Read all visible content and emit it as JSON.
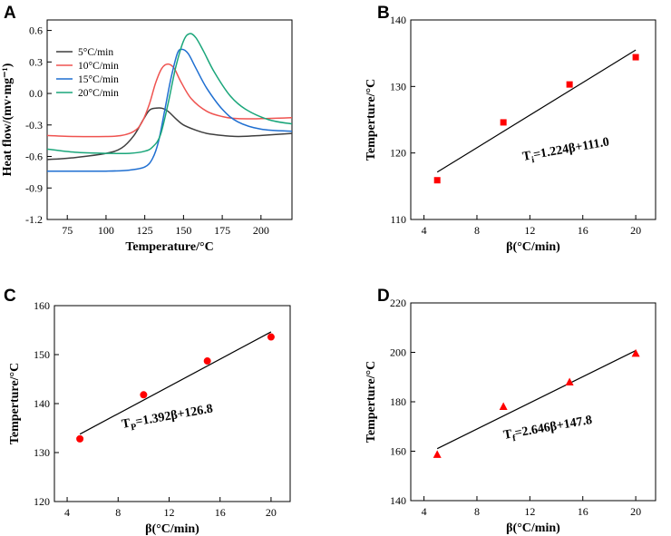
{
  "chart_data": [
    {
      "panel": "A",
      "type": "line",
      "xlabel": "Temperature/°C",
      "ylabel": "Heat flow/(mv·mg⁻¹)",
      "xlim": [
        62,
        220
      ],
      "ylim": [
        -1.2,
        0.7
      ],
      "xticks": [
        75,
        100,
        125,
        150,
        175,
        200
      ],
      "yticks": [
        -1.2,
        -0.9,
        -0.6,
        -0.3,
        0.0,
        0.3,
        0.6
      ],
      "ytick_labels": [
        "-1.2",
        "-0.9",
        "-0.6",
        "-0.3",
        "0.0",
        "0.3",
        "0.6"
      ],
      "series": [
        {
          "name": "5°C/min",
          "color": "#3f3f3f",
          "x": [
            62,
            80,
            100,
            110,
            118,
            124,
            128,
            132,
            136,
            140,
            145,
            150,
            158,
            165,
            175,
            185,
            200,
            220
          ],
          "y": [
            -0.63,
            -0.61,
            -0.57,
            -0.52,
            -0.4,
            -0.25,
            -0.16,
            -0.14,
            -0.14,
            -0.17,
            -0.24,
            -0.3,
            -0.35,
            -0.38,
            -0.4,
            -0.41,
            -0.4,
            -0.38
          ]
        },
        {
          "name": "10°C/min",
          "color": "#ef5350",
          "x": [
            62,
            80,
            100,
            110,
            118,
            123,
            128,
            132,
            136,
            140,
            144,
            148,
            155,
            165,
            175,
            185,
            200,
            220
          ],
          "y": [
            -0.4,
            -0.41,
            -0.41,
            -0.4,
            -0.36,
            -0.28,
            -0.1,
            0.1,
            0.24,
            0.28,
            0.24,
            0.12,
            -0.05,
            -0.17,
            -0.22,
            -0.24,
            -0.24,
            -0.23
          ]
        },
        {
          "name": "15°C/min",
          "color": "#1f6fd1",
          "x": [
            62,
            80,
            100,
            115,
            125,
            130,
            134,
            138,
            142,
            146,
            149,
            153,
            158,
            165,
            175,
            185,
            200,
            220
          ],
          "y": [
            -0.74,
            -0.74,
            -0.74,
            -0.73,
            -0.7,
            -0.62,
            -0.45,
            -0.15,
            0.15,
            0.38,
            0.42,
            0.38,
            0.24,
            0.05,
            -0.15,
            -0.27,
            -0.34,
            -0.36
          ]
        },
        {
          "name": "20°C/min",
          "color": "#1aa67a",
          "x": [
            62,
            80,
            100,
            115,
            125,
            130,
            135,
            140,
            145,
            150,
            154,
            158,
            163,
            170,
            180,
            190,
            205,
            220
          ],
          "y": [
            -0.53,
            -0.56,
            -0.57,
            -0.57,
            -0.55,
            -0.51,
            -0.4,
            -0.1,
            0.25,
            0.5,
            0.57,
            0.53,
            0.4,
            0.2,
            -0.02,
            -0.15,
            -0.25,
            -0.29
          ]
        }
      ],
      "legend": "top-left"
    },
    {
      "panel": "B",
      "type": "scatter",
      "xlabel": "β(°C/min)",
      "ylabel": "Temperture/°C",
      "xlim": [
        3,
        21.5
      ],
      "ylim": [
        110,
        140
      ],
      "xticks": [
        4,
        8,
        12,
        16,
        20
      ],
      "yticks": [
        110,
        120,
        130,
        140
      ],
      "points": {
        "x": [
          5,
          10,
          15,
          20
        ],
        "y": [
          115.9,
          124.6,
          130.3,
          134.4
        ]
      },
      "marker": "square",
      "marker_color": "#ff0000",
      "fit": {
        "slope": 1.224,
        "intercept": 111.0,
        "x_range": [
          5,
          20
        ]
      },
      "equation": {
        "main": "T",
        "sub": "i",
        "rest": "=1.224β+111.0"
      }
    },
    {
      "panel": "C",
      "type": "scatter",
      "xlabel": "β(°C/min)",
      "ylabel": "Temperture/°C",
      "xlim": [
        3,
        21.5
      ],
      "ylim": [
        120,
        160
      ],
      "xticks": [
        4,
        8,
        12,
        16,
        20
      ],
      "yticks": [
        120,
        130,
        140,
        150,
        160
      ],
      "points": {
        "x": [
          5,
          10,
          15,
          20
        ],
        "y": [
          132.8,
          141.8,
          148.7,
          153.6
        ]
      },
      "marker": "circle",
      "marker_color": "#ff0000",
      "fit": {
        "slope": 1.392,
        "intercept": 126.8,
        "x_range": [
          5,
          20
        ]
      },
      "equation": {
        "main": "T",
        "sub": "P",
        "rest": "=1.392β+126.8"
      }
    },
    {
      "panel": "D",
      "type": "scatter",
      "xlabel": "β(°C/min)",
      "ylabel": "Temperture/°C",
      "xlim": [
        3,
        21.5
      ],
      "ylim": [
        140,
        220
      ],
      "xticks": [
        4,
        8,
        12,
        16,
        20
      ],
      "yticks": [
        140,
        160,
        180,
        200,
        220
      ],
      "points": {
        "x": [
          5,
          10,
          15,
          20
        ],
        "y": [
          158.6,
          178.0,
          187.9,
          199.5
        ]
      },
      "marker": "triangle",
      "marker_color": "#ff0000",
      "fit": {
        "slope": 2.646,
        "intercept": 147.8,
        "x_range": [
          5,
          20
        ]
      },
      "equation": {
        "main": "T",
        "sub": "f",
        "rest": "=2.646β+147.8"
      }
    }
  ]
}
